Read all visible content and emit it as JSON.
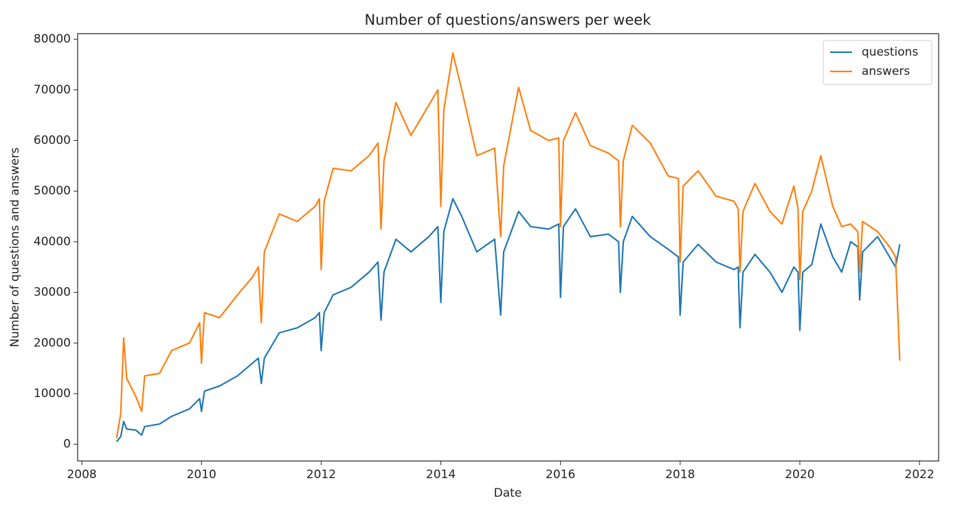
{
  "chart_data": {
    "type": "line",
    "title": "Number of questions/answers per week",
    "x_label": "Date",
    "y_label": "Number of questions and answers",
    "x": [
      2008.58,
      2008.65,
      2008.7,
      2008.75,
      2008.9,
      2009.0,
      2009.05,
      2009.3,
      2009.5,
      2009.8,
      2009.97,
      2010.0,
      2010.05,
      2010.3,
      2010.6,
      2010.85,
      2010.95,
      2011.0,
      2011.05,
      2011.3,
      2011.6,
      2011.9,
      2011.97,
      2012.0,
      2012.05,
      2012.2,
      2012.5,
      2012.8,
      2012.95,
      2013.0,
      2013.05,
      2013.25,
      2013.5,
      2013.8,
      2013.95,
      2014.0,
      2014.05,
      2014.2,
      2014.35,
      2014.6,
      2014.9,
      2015.0,
      2015.05,
      2015.3,
      2015.5,
      2015.8,
      2015.97,
      2016.0,
      2016.05,
      2016.25,
      2016.5,
      2016.8,
      2016.97,
      2017.0,
      2017.05,
      2017.2,
      2017.5,
      2017.8,
      2017.97,
      2018.0,
      2018.05,
      2018.3,
      2018.6,
      2018.9,
      2018.97,
      2019.0,
      2019.05,
      2019.25,
      2019.5,
      2019.7,
      2019.9,
      2019.97,
      2020.0,
      2020.05,
      2020.2,
      2020.35,
      2020.55,
      2020.7,
      2020.85,
      2020.97,
      2021.0,
      2021.05,
      2021.3,
      2021.5,
      2021.6,
      2021.67
    ],
    "series": [
      {
        "name": "questions",
        "color": "#1f77b4",
        "values": [
          500,
          1500,
          4500,
          3000,
          2800,
          1800,
          3500,
          4000,
          5500,
          7000,
          9000,
          6500,
          10500,
          11500,
          13500,
          16000,
          17000,
          12000,
          17000,
          22000,
          23000,
          25000,
          26000,
          18500,
          26000,
          29500,
          31000,
          34000,
          36000,
          24500,
          34000,
          40500,
          38000,
          41000,
          43000,
          28000,
          42000,
          48500,
          45000,
          38000,
          40500,
          25500,
          38000,
          46000,
          43000,
          42500,
          43500,
          29000,
          43000,
          46500,
          41000,
          41500,
          40000,
          30000,
          40000,
          45000,
          41000,
          38500,
          37000,
          25500,
          36000,
          39500,
          36000,
          34500,
          35000,
          23000,
          34000,
          37500,
          34000,
          30000,
          35000,
          34000,
          22500,
          34000,
          35500,
          43500,
          37000,
          34000,
          40000,
          39000,
          28500,
          38000,
          41000,
          37000,
          35000,
          39500
        ]
      },
      {
        "name": "answers",
        "color": "#ff7f0e",
        "values": [
          1200,
          6000,
          21000,
          13000,
          9500,
          6500,
          13500,
          14000,
          18500,
          20000,
          24000,
          16000,
          26000,
          25000,
          29500,
          33000,
          35000,
          24000,
          38000,
          45500,
          44000,
          47000,
          48500,
          34500,
          48000,
          54500,
          54000,
          57000,
          59500,
          42500,
          56000,
          67500,
          61000,
          67000,
          70000,
          47000,
          66000,
          77300,
          70000,
          57000,
          58500,
          41000,
          55000,
          70500,
          62000,
          60000,
          60500,
          43000,
          60000,
          65500,
          59000,
          57500,
          56000,
          43000,
          56000,
          63000,
          59500,
          53000,
          52500,
          36000,
          51000,
          54000,
          49000,
          48000,
          46500,
          34000,
          46000,
          51500,
          46000,
          43500,
          51000,
          46500,
          32500,
          46000,
          50000,
          57000,
          47000,
          43000,
          43500,
          42000,
          34000,
          44000,
          42000,
          39000,
          37000,
          16500
        ]
      }
    ],
    "xlim": [
      2007.93,
      2022.32
    ],
    "xticks": [
      2008,
      2010,
      2012,
      2014,
      2016,
      2018,
      2020,
      2022
    ],
    "ylim": [
      -3300,
      81100
    ],
    "yticks": [
      0,
      10000,
      20000,
      30000,
      40000,
      50000,
      60000,
      70000,
      80000
    ],
    "legend": "upper right"
  }
}
